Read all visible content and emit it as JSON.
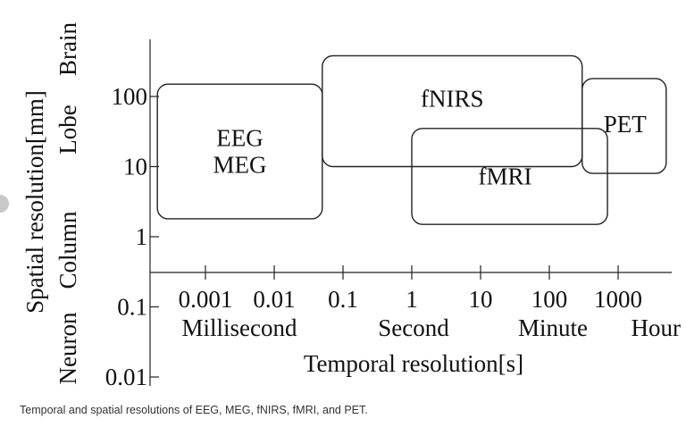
{
  "chart_data": {
    "type": "range-box",
    "xlabel": "Temporal resolution[s]",
    "ylabel": "Spatial resolution[mm]",
    "x_scale": "log",
    "y_scale": "log",
    "x_ticks": [
      "0.001",
      "0.01",
      "0.1",
      "1",
      "10",
      "100",
      "1000"
    ],
    "y_ticks": [
      "100",
      "10",
      "1",
      "0.1",
      "0.01"
    ],
    "x_categories": [
      "Millisecond",
      "Second",
      "Minute",
      "Hour"
    ],
    "y_categories": [
      "Brain",
      "Lobe",
      "Column",
      "Neuron"
    ],
    "boxes": [
      {
        "label": "EEG\nMEG",
        "x": [
          0.0002,
          0.05
        ],
        "y": [
          1.8,
          150
        ]
      },
      {
        "label": "fNIRS",
        "x": [
          0.05,
          300
        ],
        "y": [
          10,
          380
        ]
      },
      {
        "label": "fMRI",
        "x": [
          1,
          700
        ],
        "y": [
          1.5,
          35
        ]
      },
      {
        "label": "PET",
        "x": [
          300,
          5000
        ],
        "y": [
          8,
          180
        ]
      }
    ]
  },
  "caption": "Temporal and spatial resolutions of EEG, MEG, fNIRS, fMRI, and PET."
}
